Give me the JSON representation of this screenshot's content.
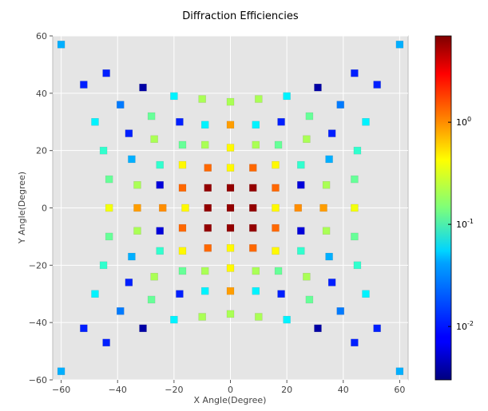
{
  "chart_data": {
    "type": "scatter",
    "title": "Diffraction Efficiencies",
    "xlabel": "X Angle(Degree)",
    "ylabel": "Y Angle(Degree)",
    "xlim": [
      -63,
      63
    ],
    "ylim": [
      -60,
      60
    ],
    "xticks": [
      "−60",
      "−40",
      "−20",
      "0",
      "20",
      "40",
      "60"
    ],
    "xtick_values": [
      -60,
      -40,
      -20,
      0,
      20,
      40,
      60
    ],
    "yticks": [
      "−60",
      "−40",
      "−20",
      "0",
      "20",
      "40",
      "60"
    ],
    "ytick_values": [
      -60,
      -40,
      -20,
      0,
      20,
      40,
      60
    ],
    "grid": true,
    "plot_background": "#e5e5e5",
    "grid_color": "#ffffff",
    "marker": "square",
    "colormap": "jet",
    "color_scale": "log",
    "clim": [
      0.003,
      7
    ],
    "colorbar": {
      "ticks": [
        {
          "value": 1,
          "base": "10",
          "exponent": "0"
        },
        {
          "value": 0.1,
          "base": "10",
          "exponent": "-1"
        },
        {
          "value": 0.01,
          "base": "10",
          "exponent": "-2"
        }
      ]
    },
    "points": [
      {
        "x": 0,
        "y": 0,
        "v": 6.0
      },
      {
        "x": 8,
        "y": 0,
        "v": 6.0
      },
      {
        "x": -8,
        "y": 0,
        "v": 6.0
      },
      {
        "x": 0,
        "y": 7,
        "v": 6.0
      },
      {
        "x": 0,
        "y": -7,
        "v": 6.0
      },
      {
        "x": 8,
        "y": 7,
        "v": 6.0
      },
      {
        "x": -8,
        "y": 7,
        "v": 6.0
      },
      {
        "x": 8,
        "y": -7,
        "v": 6.0
      },
      {
        "x": -8,
        "y": -7,
        "v": 6.0
      },
      {
        "x": 16,
        "y": 0,
        "v": 0.4
      },
      {
        "x": -16,
        "y": 0,
        "v": 0.4
      },
      {
        "x": 16,
        "y": 7,
        "v": 1.2
      },
      {
        "x": -17,
        "y": 7,
        "v": 1.2
      },
      {
        "x": 16,
        "y": -7,
        "v": 1.2
      },
      {
        "x": -17,
        "y": -7,
        "v": 1.2
      },
      {
        "x": 0,
        "y": 14,
        "v": 0.4
      },
      {
        "x": 0,
        "y": -14,
        "v": 0.4
      },
      {
        "x": 8,
        "y": 14,
        "v": 1.2
      },
      {
        "x": -8,
        "y": 14,
        "v": 1.2
      },
      {
        "x": 8,
        "y": -14,
        "v": 1.2
      },
      {
        "x": -8,
        "y": -14,
        "v": 1.2
      },
      {
        "x": 16,
        "y": 15,
        "v": 0.4
      },
      {
        "x": -17,
        "y": 15,
        "v": 0.4
      },
      {
        "x": 16,
        "y": -15,
        "v": 0.4
      },
      {
        "x": -17,
        "y": -15,
        "v": 0.4
      },
      {
        "x": 24,
        "y": 0,
        "v": 0.9
      },
      {
        "x": -24,
        "y": 0,
        "v": 0.9
      },
      {
        "x": 33,
        "y": 0,
        "v": 0.8
      },
      {
        "x": -33,
        "y": 0,
        "v": 0.8
      },
      {
        "x": 44,
        "y": 0,
        "v": 0.35
      },
      {
        "x": -43,
        "y": 0,
        "v": 0.35
      },
      {
        "x": 25,
        "y": 8,
        "v": 0.006
      },
      {
        "x": -25,
        "y": 8,
        "v": 0.006
      },
      {
        "x": 25,
        "y": -8,
        "v": 0.006
      },
      {
        "x": -25,
        "y": -8,
        "v": 0.006
      },
      {
        "x": 34,
        "y": 8,
        "v": 0.2
      },
      {
        "x": -33,
        "y": 8,
        "v": 0.2
      },
      {
        "x": 34,
        "y": -8,
        "v": 0.2
      },
      {
        "x": -33,
        "y": -8,
        "v": 0.2
      },
      {
        "x": 44,
        "y": 10,
        "v": 0.12
      },
      {
        "x": -43,
        "y": 10,
        "v": 0.12
      },
      {
        "x": 44,
        "y": -10,
        "v": 0.12
      },
      {
        "x": -43,
        "y": -10,
        "v": 0.12
      },
      {
        "x": 0,
        "y": 21,
        "v": 0.4
      },
      {
        "x": 0,
        "y": -21,
        "v": 0.4
      },
      {
        "x": 9,
        "y": 22,
        "v": 0.2
      },
      {
        "x": -9,
        "y": 22,
        "v": 0.2
      },
      {
        "x": 9,
        "y": -22,
        "v": 0.2
      },
      {
        "x": -9,
        "y": -22,
        "v": 0.2
      },
      {
        "x": 17,
        "y": 22,
        "v": 0.12
      },
      {
        "x": -17,
        "y": 22,
        "v": 0.12
      },
      {
        "x": 17,
        "y": -22,
        "v": 0.12
      },
      {
        "x": -17,
        "y": -22,
        "v": 0.12
      },
      {
        "x": 25,
        "y": 15,
        "v": 0.08
      },
      {
        "x": -25,
        "y": 15,
        "v": 0.08
      },
      {
        "x": 25,
        "y": -15,
        "v": 0.08
      },
      {
        "x": -25,
        "y": -15,
        "v": 0.08
      },
      {
        "x": 35,
        "y": 17,
        "v": 0.03
      },
      {
        "x": -35,
        "y": 17,
        "v": 0.03
      },
      {
        "x": 35,
        "y": -17,
        "v": 0.03
      },
      {
        "x": -35,
        "y": -17,
        "v": 0.03
      },
      {
        "x": 27,
        "y": 24,
        "v": 0.2
      },
      {
        "x": -27,
        "y": 24,
        "v": 0.2
      },
      {
        "x": 27,
        "y": -24,
        "v": 0.2
      },
      {
        "x": -27,
        "y": -24,
        "v": 0.2
      },
      {
        "x": 45,
        "y": 20,
        "v": 0.08
      },
      {
        "x": -45,
        "y": 20,
        "v": 0.08
      },
      {
        "x": 45,
        "y": -20,
        "v": 0.08
      },
      {
        "x": -45,
        "y": -20,
        "v": 0.08
      },
      {
        "x": 0,
        "y": 29,
        "v": 0.8
      },
      {
        "x": 0,
        "y": -29,
        "v": 0.8
      },
      {
        "x": 9,
        "y": 29,
        "v": 0.05
      },
      {
        "x": -9,
        "y": 29,
        "v": 0.05
      },
      {
        "x": 9,
        "y": -29,
        "v": 0.05
      },
      {
        "x": -9,
        "y": -29,
        "v": 0.05
      },
      {
        "x": 18,
        "y": 30,
        "v": 0.01
      },
      {
        "x": -18,
        "y": 30,
        "v": 0.01
      },
      {
        "x": 18,
        "y": -30,
        "v": 0.01
      },
      {
        "x": -18,
        "y": -30,
        "v": 0.01
      },
      {
        "x": 36,
        "y": 26,
        "v": 0.01
      },
      {
        "x": -36,
        "y": 26,
        "v": 0.01
      },
      {
        "x": 36,
        "y": -26,
        "v": 0.01
      },
      {
        "x": -36,
        "y": -26,
        "v": 0.01
      },
      {
        "x": 28,
        "y": 32,
        "v": 0.12
      },
      {
        "x": -28,
        "y": 32,
        "v": 0.12
      },
      {
        "x": 28,
        "y": -32,
        "v": 0.12
      },
      {
        "x": -28,
        "y": -32,
        "v": 0.12
      },
      {
        "x": 48,
        "y": 30,
        "v": 0.05
      },
      {
        "x": -48,
        "y": 30,
        "v": 0.05
      },
      {
        "x": 48,
        "y": -30,
        "v": 0.05
      },
      {
        "x": -48,
        "y": -30,
        "v": 0.05
      },
      {
        "x": 0,
        "y": 37,
        "v": 0.2
      },
      {
        "x": 0,
        "y": -37,
        "v": 0.2
      },
      {
        "x": 10,
        "y": 38,
        "v": 0.2
      },
      {
        "x": -10,
        "y": 38,
        "v": 0.2
      },
      {
        "x": 10,
        "y": -38,
        "v": 0.2
      },
      {
        "x": -10,
        "y": -38,
        "v": 0.2
      },
      {
        "x": 20,
        "y": 39,
        "v": 0.05
      },
      {
        "x": -20,
        "y": 39,
        "v": 0.05
      },
      {
        "x": 20,
        "y": -39,
        "v": 0.05
      },
      {
        "x": -20,
        "y": -39,
        "v": 0.05
      },
      {
        "x": 39,
        "y": 36,
        "v": 0.02
      },
      {
        "x": -39,
        "y": 36,
        "v": 0.02
      },
      {
        "x": 39,
        "y": -36,
        "v": 0.02
      },
      {
        "x": -39,
        "y": -36,
        "v": 0.02
      },
      {
        "x": 31,
        "y": 42,
        "v": 0.004
      },
      {
        "x": -31,
        "y": 42,
        "v": 0.004
      },
      {
        "x": 31,
        "y": -42,
        "v": 0.004
      },
      {
        "x": -31,
        "y": -42,
        "v": 0.004
      },
      {
        "x": 44,
        "y": 47,
        "v": 0.01
      },
      {
        "x": -44,
        "y": 47,
        "v": 0.01
      },
      {
        "x": 44,
        "y": -47,
        "v": 0.01
      },
      {
        "x": -44,
        "y": -47,
        "v": 0.01
      },
      {
        "x": 52,
        "y": 43,
        "v": 0.01
      },
      {
        "x": -52,
        "y": 43,
        "v": 0.01
      },
      {
        "x": 52,
        "y": -42,
        "v": 0.01
      },
      {
        "x": -52,
        "y": -42,
        "v": 0.01
      },
      {
        "x": 60,
        "y": 57,
        "v": 0.03
      },
      {
        "x": -60,
        "y": 57,
        "v": 0.03
      },
      {
        "x": 60,
        "y": -57,
        "v": 0.03
      },
      {
        "x": -60,
        "y": -57,
        "v": 0.03
      }
    ]
  }
}
